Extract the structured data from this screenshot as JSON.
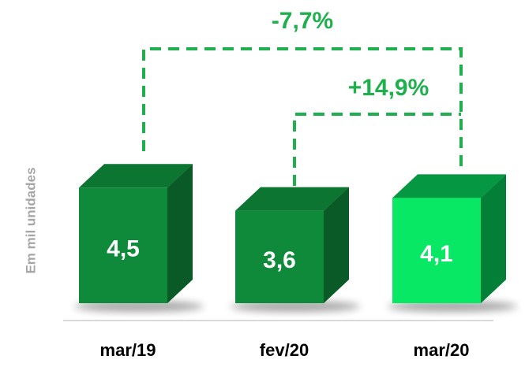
{
  "chart_data": {
    "type": "bar3d",
    "y_axis_label": "Em mil unidades",
    "categories": [
      "mar/19",
      "fev/20",
      "mar/20"
    ],
    "values": [
      4.5,
      3.6,
      4.1
    ],
    "value_labels": [
      "4,5",
      "3,6",
      "4,1"
    ],
    "colors": [
      "#0f8a3b",
      "#0f8a3b",
      "#08e864"
    ],
    "annotations": [
      "-7,7%",
      "+14,9%"
    ]
  }
}
